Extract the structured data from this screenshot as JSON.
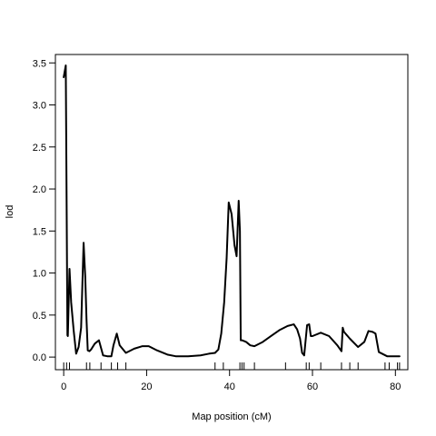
{
  "chart_data": {
    "type": "line",
    "xlabel": "Map position (cM)",
    "ylabel": "lod",
    "xlim": [
      -2,
      83
    ],
    "ylim": [
      -0.15,
      3.6
    ],
    "x_ticks": [
      0,
      20,
      40,
      60,
      80
    ],
    "y_ticks": [
      0.0,
      0.5,
      1.0,
      1.5,
      2.0,
      2.5,
      3.0,
      3.5
    ],
    "x_tick_labels": [
      "0",
      "20",
      "40",
      "60",
      "80"
    ],
    "y_tick_labels": [
      "0.0",
      "0.5",
      "1.0",
      "1.5",
      "2.0",
      "2.5",
      "3.0",
      "3.5"
    ],
    "grid": false,
    "line_color": "#000000",
    "series": [
      {
        "x": [
          0.0,
          0.5,
          0.9,
          1.0,
          1.4,
          1.8,
          2.4,
          3.0,
          3.6,
          4.2,
          4.8,
          5.2,
          5.5,
          5.8,
          6.2,
          6.6,
          7.5,
          8.5,
          9.5,
          10.5,
          11.5,
          12.0,
          12.8,
          13.5,
          15.0,
          17.0,
          19.0,
          20.5,
          22.5,
          25.0,
          27.0,
          30.0,
          33.0,
          35.0,
          36.5,
          37.3,
          38.0,
          38.7,
          39.3,
          39.8,
          40.5,
          41.2,
          41.7,
          42.2,
          42.5,
          42.7,
          43.0,
          44.0,
          45.0,
          46.0,
          48.0,
          50.0,
          52.0,
          54.0,
          55.5,
          56.3,
          57.0,
          57.5,
          58.0,
          58.7,
          59.2,
          59.6,
          60.0,
          62.0,
          64.0,
          66.0,
          67.0,
          67.3,
          67.6,
          69.0,
          71.0,
          72.5,
          73.5,
          74.5,
          75.2,
          76.0,
          78.0,
          81.0
        ],
        "y": [
          3.33,
          3.47,
          0.26,
          0.25,
          1.05,
          0.65,
          0.32,
          0.04,
          0.12,
          0.35,
          1.36,
          0.95,
          0.45,
          0.08,
          0.07,
          0.09,
          0.16,
          0.2,
          0.02,
          0.01,
          0.01,
          0.14,
          0.28,
          0.14,
          0.05,
          0.1,
          0.13,
          0.13,
          0.08,
          0.03,
          0.01,
          0.01,
          0.02,
          0.04,
          0.05,
          0.09,
          0.28,
          0.65,
          1.18,
          1.84,
          1.7,
          1.33,
          1.2,
          1.86,
          1.5,
          0.2,
          0.2,
          0.18,
          0.14,
          0.13,
          0.18,
          0.25,
          0.32,
          0.37,
          0.39,
          0.33,
          0.22,
          0.05,
          0.02,
          0.38,
          0.39,
          0.25,
          0.25,
          0.29,
          0.25,
          0.14,
          0.07,
          0.35,
          0.3,
          0.22,
          0.12,
          0.18,
          0.31,
          0.3,
          0.28,
          0.06,
          0.01,
          0.01
        ]
      }
    ],
    "markers": [
      0.0,
      0.7,
      1.4,
      5.5,
      6.3,
      9.0,
      11.5,
      13.0,
      15.0,
      36.5,
      38.5,
      42.5,
      43.0,
      43.5,
      46.0,
      53.5,
      58.5,
      59.2,
      62.0,
      67.0,
      69.0,
      71.0,
      77.5,
      78.5,
      80.5,
      81.0
    ]
  }
}
